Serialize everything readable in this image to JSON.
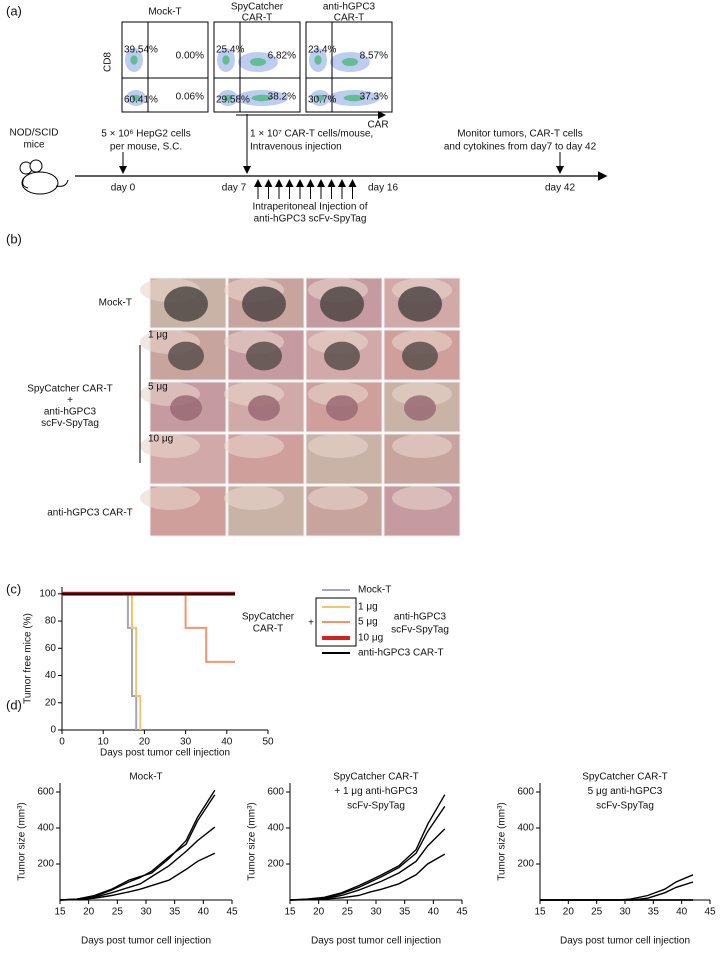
{
  "panel_labels": [
    "(a)",
    "(b)",
    "(c)",
    "(d)"
  ],
  "panel_a": {
    "flow": {
      "plots": [
        {
          "title": [
            "Mock-T"
          ],
          "quadrants": [
            "39.54%",
            "0.00%",
            "60.41%",
            "0.06%"
          ]
        },
        {
          "title": [
            "SpyCatcher",
            "CAR-T"
          ],
          "quadrants": [
            "25.4%",
            "6.82%",
            "29.58%",
            "38.2%"
          ]
        },
        {
          "title": [
            "anti-hGPC3",
            "CAR-T"
          ],
          "quadrants": [
            "23.4%",
            "8.57%",
            "30.7%",
            "37.3%"
          ]
        }
      ],
      "y_label": "CD8",
      "x_label": "CAR"
    },
    "timeline": {
      "host": [
        "NOD/SCID",
        "mice"
      ],
      "steps": [
        {
          "text": [
            "5 × 10⁶ HepG2 cells",
            "per mouse, S.C."
          ],
          "day": "day 0"
        },
        {
          "text": [
            "1 × 10⁷ CAR-T cells/mouse,",
            "Intravenous  injection"
          ],
          "day": "day 7"
        },
        {
          "day": "day 16"
        },
        {
          "text": [
            "Monitor tumors, CAR-T cells",
            "and cytokines from day7 to day 42"
          ],
          "day": "day 42"
        }
      ],
      "injection": [
        "Intraperitoneal Injection of",
        "anti-hGPC3 scFv-SpyTag"
      ]
    }
  },
  "panel_b": {
    "rows": [
      "Mock-T",
      "1 μg",
      "5 μg",
      "10 μg",
      "anti-hGPC3 CAR-T"
    ],
    "group": [
      "SpyCatcher CAR-T",
      "+",
      "anti-hGPC3",
      "scFv-SpyTag"
    ]
  },
  "chart_data": [
    {
      "type": "line",
      "x_label": "Days post tumor cell injection",
      "y_label": "Tumor free mice (%)",
      "xlim": [
        0,
        50
      ],
      "xticks": [
        0,
        10,
        20,
        30,
        40,
        50
      ],
      "ylim": [
        0,
        105
      ],
      "yticks": [
        0,
        20,
        40,
        60,
        80,
        100
      ],
      "series": [
        {
          "name": "Mock-T",
          "color": "#a3a6b8",
          "x": [
            0,
            16,
            16,
            17,
            17,
            18,
            18
          ],
          "values": [
            100,
            100,
            75,
            75,
            25,
            25,
            0
          ]
        },
        {
          "name": "1 μg",
          "color": "#f3c36e",
          "x": [
            0,
            17,
            17,
            18,
            18,
            19,
            19
          ],
          "values": [
            100,
            100,
            75,
            75,
            25,
            25,
            0
          ]
        },
        {
          "name": "5 μg",
          "color": "#ef9574",
          "x": [
            0,
            30,
            30,
            35,
            35,
            42
          ],
          "values": [
            100,
            100,
            75,
            75,
            50,
            50
          ]
        },
        {
          "name": "10 μg",
          "color": "#d42020",
          "line_width": 4,
          "x": [
            0,
            42
          ],
          "values": [
            100,
            100
          ]
        },
        {
          "name": "anti-hGPC3 CAR-T",
          "color": "#000000",
          "x": [
            0,
            42
          ],
          "values": [
            100,
            100
          ]
        }
      ],
      "legend_group": {
        "left": [
          "SpyCatcher",
          "CAR-T"
        ],
        "plus": "+",
        "right": [
          "anti-hGPC3",
          "scFv-SpyTag"
        ]
      }
    },
    {
      "type": "line",
      "title": [
        "Mock-T"
      ],
      "x_label": "Days post tumor cell injection",
      "y_label": "Tumor size (mm³)",
      "x": [
        15,
        18,
        21,
        24,
        27,
        29,
        31,
        34,
        37,
        39,
        42
      ],
      "xlim": [
        15,
        45
      ],
      "xticks": [
        15,
        20,
        25,
        30,
        35,
        40,
        45
      ],
      "ylim": [
        0,
        650
      ],
      "yticks": [
        200,
        400,
        600
      ],
      "series": [
        {
          "color": "#000000",
          "values": [
            0,
            5,
            25,
            60,
            110,
            130,
            150,
            230,
            330,
            460,
            610
          ]
        },
        {
          "color": "#000000",
          "values": [
            0,
            5,
            20,
            55,
            100,
            125,
            160,
            240,
            310,
            440,
            585
          ]
        },
        {
          "color": "#000000",
          "values": [
            0,
            3,
            15,
            40,
            70,
            90,
            130,
            190,
            270,
            330,
            405
          ]
        },
        {
          "color": "#000000",
          "values": [
            0,
            2,
            10,
            25,
            45,
            60,
            80,
            110,
            170,
            215,
            260
          ]
        }
      ]
    },
    {
      "type": "line",
      "title": [
        "SpyCatcher CAR-T",
        "+ 1 μg anti-hGPC3",
        "scFv-SpyTag"
      ],
      "x_label": "Days post tumor cell injection",
      "y_label": "Tumor size (mm³)",
      "x": [
        15,
        18,
        21,
        24,
        27,
        29,
        31,
        34,
        37,
        39,
        42
      ],
      "xlim": [
        15,
        45
      ],
      "xticks": [
        15,
        20,
        25,
        30,
        35,
        40,
        45
      ],
      "ylim": [
        0,
        650
      ],
      "yticks": [
        200,
        400,
        600
      ],
      "series": [
        {
          "color": "#000000",
          "values": [
            0,
            5,
            15,
            40,
            80,
            110,
            140,
            190,
            280,
            420,
            585
          ]
        },
        {
          "color": "#000000",
          "values": [
            0,
            3,
            12,
            35,
            70,
            100,
            130,
            180,
            260,
            380,
            520
          ]
        },
        {
          "color": "#000000",
          "values": [
            0,
            2,
            8,
            25,
            55,
            80,
            105,
            150,
            215,
            300,
            395
          ]
        },
        {
          "color": "#000000",
          "values": [
            0,
            1,
            5,
            12,
            25,
            45,
            60,
            90,
            140,
            200,
            255
          ]
        }
      ]
    },
    {
      "type": "line",
      "title": [
        "SpyCatcher CAR-T",
        "5 μg anti-hGPC3",
        "scFv-SpyTag"
      ],
      "x_label": "Days post tumor cell injection",
      "y_label": "Tumor size (mm³)",
      "x": [
        15,
        18,
        21,
        24,
        27,
        29,
        31,
        34,
        37,
        39,
        42
      ],
      "xlim": [
        15,
        45
      ],
      "xticks": [
        15,
        20,
        25,
        30,
        35,
        40,
        45
      ],
      "ylim": [
        0,
        650
      ],
      "yticks": [
        200,
        400,
        600
      ],
      "series": [
        {
          "color": "#000000",
          "values": [
            0,
            0,
            0,
            0,
            0,
            0,
            5,
            25,
            60,
            100,
            140
          ]
        },
        {
          "color": "#000000",
          "values": [
            0,
            0,
            0,
            0,
            0,
            0,
            0,
            10,
            40,
            70,
            100
          ]
        },
        {
          "color": "#000000",
          "values": [
            0,
            0,
            0,
            0,
            0,
            0,
            0,
            0,
            0,
            0,
            0
          ]
        },
        {
          "color": "#000000",
          "values": [
            0,
            0,
            0,
            0,
            0,
            0,
            0,
            0,
            0,
            0,
            0
          ]
        }
      ]
    }
  ]
}
